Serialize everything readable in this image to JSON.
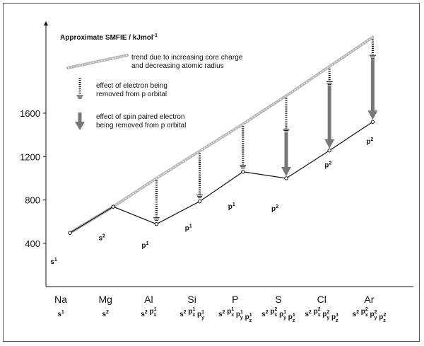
{
  "chart_data": {
    "type": "line",
    "ylabel": "Approximate SMFIE / kJmol",
    "ylabel_sup": "-1",
    "yticks": [
      400,
      800,
      1200,
      1600
    ],
    "elements": [
      "Na",
      "Mg",
      "Al",
      "Si",
      "P",
      "S",
      "Cl",
      "Ar"
    ],
    "configs": [
      [
        {
          "t": "s",
          "s": "1",
          "b": ""
        }
      ],
      [
        {
          "t": "s",
          "s": "2",
          "b": ""
        }
      ],
      [
        {
          "t": "s",
          "s": "2",
          "b": ""
        },
        {
          "t": "p",
          "s": "1",
          "b": "x"
        }
      ],
      [
        {
          "t": "s",
          "s": "2",
          "b": ""
        },
        {
          "t": "p",
          "s": "1",
          "b": "x"
        },
        {
          "t": "p",
          "s": "1",
          "b": "y"
        }
      ],
      [
        {
          "t": "s",
          "s": "2",
          "b": ""
        },
        {
          "t": "p",
          "s": "1",
          "b": "x"
        },
        {
          "t": "p",
          "s": "1",
          "b": "y"
        },
        {
          "t": "p",
          "s": "1",
          "b": "z"
        }
      ],
      [
        {
          "t": "s",
          "s": "2",
          "b": ""
        },
        {
          "t": "p",
          "s": "2",
          "b": "x"
        },
        {
          "t": "p",
          "s": "1",
          "b": "y"
        },
        {
          "t": "p",
          "s": "1",
          "b": "z"
        }
      ],
      [
        {
          "t": "s",
          "s": "2",
          "b": ""
        },
        {
          "t": "p",
          "s": "2",
          "b": "x"
        },
        {
          "t": "p",
          "s": "2",
          "b": "y"
        },
        {
          "t": "p",
          "s": "1",
          "b": "z"
        }
      ],
      [
        {
          "t": "s",
          "s": "2",
          "b": ""
        },
        {
          "t": "p",
          "s": "2",
          "b": "x"
        },
        {
          "t": "p",
          "s": "2",
          "b": "y"
        },
        {
          "t": "p",
          "s": "2",
          "b": "z"
        }
      ]
    ],
    "values": [
      496,
      738,
      578,
      787,
      1060,
      1000,
      1256,
      1520
    ],
    "trend": [
      496,
      738,
      1000,
      1250,
      1500,
      1760,
      2030,
      2300
    ],
    "annotations": [
      {
        "t": "s",
        "s": "1",
        "y": 210
      },
      {
        "t": "s",
        "s": "2",
        "y": 430
      },
      {
        "t": "p",
        "s": "1",
        "y": 360
      },
      {
        "t": "p",
        "s": "1",
        "y": 520
      },
      {
        "t": "p",
        "s": "1",
        "y": 720
      },
      {
        "t": "p",
        "s": "2",
        "y": 700
      },
      {
        "t": "p",
        "s": "2",
        "y": 1100
      },
      {
        "t": "p",
        "s": "2",
        "y": 1320
      }
    ],
    "legend": {
      "trend": [
        "trend due to increasing core charge",
        "and decreasing atomic radius"
      ],
      "p_removal": [
        "effect of electron being",
        "removed from p orbital"
      ],
      "spin_paired": [
        "effect of spin paired electron",
        "being removed from p orbital"
      ]
    },
    "ylim": [
      0,
      2400
    ],
    "grid": false
  }
}
